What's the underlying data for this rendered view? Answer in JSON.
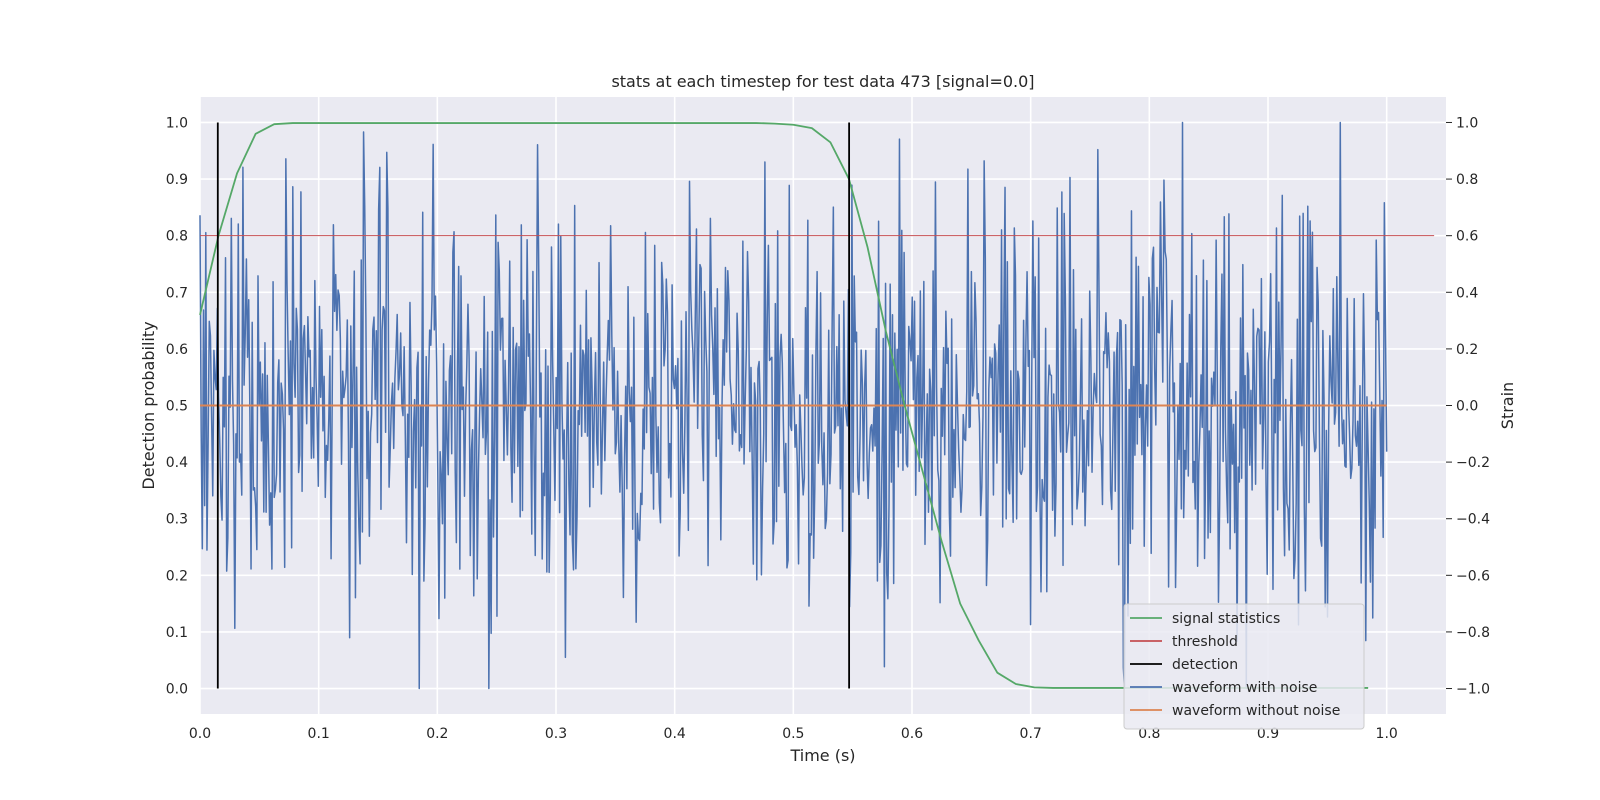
{
  "chart_data": {
    "type": "line",
    "title": "stats at each timestep for test data 473 [signal=0.0]",
    "xlabel": "Time (s)",
    "ylabel": "Detection probability",
    "y2label": "Strain",
    "xlim": [
      0.0,
      1.05
    ],
    "ylim": [
      -0.045,
      1.045
    ],
    "y2lim": [
      -1.09,
      1.09
    ],
    "xticks": [
      "0.0",
      "0.1",
      "0.2",
      "0.3",
      "0.4",
      "0.5",
      "0.6",
      "0.7",
      "0.8",
      "0.9",
      "1.0"
    ],
    "xtick_values": [
      0.0,
      0.1,
      0.2,
      0.3,
      0.4,
      0.5,
      0.6,
      0.7,
      0.8,
      0.9,
      1.0
    ],
    "yticks": [
      "0.0",
      "0.1",
      "0.2",
      "0.3",
      "0.4",
      "0.5",
      "0.6",
      "0.7",
      "0.8",
      "0.9",
      "1.0"
    ],
    "ytick_values": [
      0.0,
      0.1,
      0.2,
      0.3,
      0.4,
      0.5,
      0.6,
      0.7,
      0.8,
      0.9,
      1.0
    ],
    "y2ticks": [
      "−1.0",
      "−0.8",
      "−0.6",
      "−0.4",
      "−0.2",
      "0.0",
      "0.2",
      "0.4",
      "0.6",
      "0.8",
      "1.0"
    ],
    "y2tick_values": [
      -1.0,
      -0.8,
      -0.6,
      -0.4,
      -0.2,
      0.0,
      0.2,
      0.4,
      0.6,
      0.8,
      1.0
    ],
    "grid": true,
    "legend_position": "lower-right",
    "colors": {
      "plot_bg": "#eaeaf2",
      "grid": "#ffffff",
      "signal_statistics": "#55a868",
      "threshold": "#c44e52",
      "detection": "#000000",
      "waveform_with_noise": "#4c72b0",
      "waveform_without_noise": "#dd8452"
    },
    "series": [
      {
        "name": "signal statistics",
        "key": "signal_statistics",
        "axis": "left",
        "x": [
          0.0,
          0.0156,
          0.0312,
          0.0469,
          0.0625,
          0.0781,
          0.0938,
          0.1094,
          0.125,
          0.1406,
          0.1562,
          0.1719,
          0.1875,
          0.2031,
          0.2188,
          0.2344,
          0.25,
          0.2656,
          0.2812,
          0.2969,
          0.3125,
          0.3281,
          0.3438,
          0.3594,
          0.375,
          0.3906,
          0.4062,
          0.4219,
          0.4375,
          0.4531,
          0.4688,
          0.4844,
          0.5,
          0.5156,
          0.5312,
          0.5469,
          0.5625,
          0.5781,
          0.5938,
          0.6094,
          0.625,
          0.6406,
          0.6562,
          0.6719,
          0.6875,
          0.7031,
          0.7188,
          0.7344,
          0.75,
          0.7656,
          0.7812,
          0.7969,
          0.8125,
          0.8281,
          0.8438,
          0.8594,
          0.875,
          0.8906,
          0.9062,
          0.9219,
          0.9375,
          0.9531,
          0.9688,
          0.9844
        ],
        "y": [
          0.66,
          0.8,
          0.91,
          0.98,
          0.997,
          0.999,
          0.999,
          0.999,
          0.999,
          0.999,
          0.999,
          0.999,
          0.999,
          0.999,
          0.999,
          0.999,
          0.999,
          0.999,
          0.999,
          0.999,
          0.999,
          0.999,
          0.999,
          0.999,
          0.999,
          0.999,
          0.999,
          0.999,
          0.999,
          0.999,
          0.999,
          0.998,
          0.996,
          0.99,
          0.965,
          0.9,
          0.78,
          0.63,
          0.5,
          0.38,
          0.26,
          0.15,
          0.085,
          0.028,
          0.008,
          0.002,
          0.001,
          0.001,
          0.001,
          0.001,
          0.001,
          0.001,
          0.001,
          0.001,
          0.001,
          0.001,
          0.001,
          0.001,
          0.001,
          0.001,
          0.001,
          0.001,
          0.001,
          0.001
        ]
      },
      {
        "name": "threshold",
        "key": "threshold",
        "axis": "left",
        "x": [
          0.0,
          1.04
        ],
        "y": [
          0.8,
          0.8
        ]
      },
      {
        "name": "detection",
        "key": "detection",
        "axis": "left",
        "segments": [
          {
            "x": 0.015,
            "y0": 0.0,
            "y1": 1.0
          },
          {
            "x": 0.547,
            "y0": 0.0,
            "y1": 1.0
          }
        ]
      },
      {
        "name": "waveform with noise",
        "key": "waveform_with_noise",
        "axis": "right",
        "x_start": 0.0,
        "x_end": 1.0,
        "points": 1024,
        "y_min": -1.0,
        "y_max": 1.0
      },
      {
        "name": "waveform without noise",
        "key": "waveform_without_noise",
        "axis": "right",
        "x": [
          0.0,
          1.0
        ],
        "y": [
          0.0,
          0.0
        ]
      }
    ]
  }
}
